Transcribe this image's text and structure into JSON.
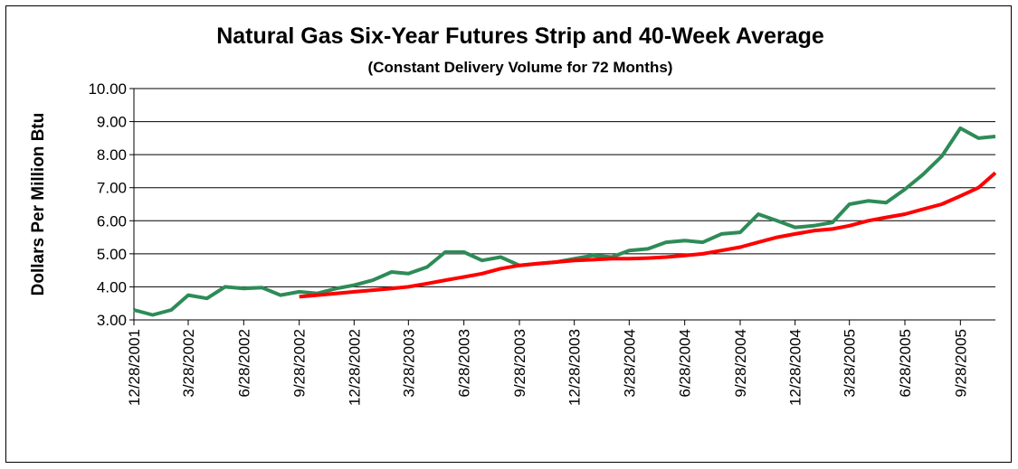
{
  "chart_data": {
    "type": "line",
    "title": "Natural Gas Six-Year Futures Strip and 40-Week Average",
    "subtitle": "(Constant Delivery Volume for 72 Months)",
    "y_label": "Dollars Per Million Btu",
    "x": [
      "12/28/2001",
      "1/28/2002",
      "2/28/2002",
      "3/28/2002",
      "4/28/2002",
      "5/28/2002",
      "6/28/2002",
      "7/28/2002",
      "8/28/2002",
      "9/28/2002",
      "10/28/2002",
      "11/28/2002",
      "12/28/2002",
      "1/28/2003",
      "2/28/2003",
      "3/28/2003",
      "4/28/2003",
      "5/28/2003",
      "6/28/2003",
      "7/28/2003",
      "8/28/2003",
      "9/28/2003",
      "10/28/2003",
      "11/28/2003",
      "12/28/2003",
      "1/28/2004",
      "2/28/2004",
      "3/28/2004",
      "4/28/2004",
      "5/28/2004",
      "6/28/2004",
      "7/28/2004",
      "8/28/2004",
      "9/28/2004",
      "10/28/2004",
      "11/28/2004",
      "12/28/2004",
      "1/28/2005",
      "2/28/2005",
      "3/28/2005",
      "4/28/2005",
      "5/28/2005",
      "6/28/2005",
      "7/28/2005",
      "8/28/2005",
      "9/28/2005",
      "10/28/2005",
      "11/25/2005"
    ],
    "series": [
      {
        "name": "Six-Year Futures Strip",
        "color": "#2e8b57",
        "values": [
          3.3,
          3.15,
          3.3,
          3.75,
          3.65,
          4.0,
          3.95,
          3.98,
          3.75,
          3.85,
          3.8,
          3.95,
          4.05,
          4.2,
          4.45,
          4.4,
          4.6,
          5.05,
          5.05,
          4.8,
          4.9,
          4.65,
          4.7,
          4.75,
          4.85,
          4.95,
          4.9,
          5.1,
          5.15,
          5.35,
          5.4,
          5.35,
          5.6,
          5.65,
          6.2,
          6.0,
          5.8,
          5.85,
          5.95,
          6.5,
          6.6,
          6.55,
          6.95,
          7.4,
          7.95,
          8.8,
          8.5,
          8.55
        ]
      },
      {
        "name": "40-Week Average",
        "color": "#ff0000",
        "values": [
          null,
          null,
          null,
          null,
          null,
          null,
          null,
          null,
          null,
          3.7,
          3.75,
          3.8,
          3.85,
          3.9,
          3.95,
          4.0,
          4.1,
          4.2,
          4.3,
          4.4,
          4.55,
          4.65,
          4.7,
          4.75,
          4.8,
          4.82,
          4.85,
          4.85,
          4.87,
          4.9,
          4.95,
          5.0,
          5.1,
          5.2,
          5.35,
          5.5,
          5.6,
          5.7,
          5.75,
          5.85,
          6.0,
          6.1,
          6.2,
          6.35,
          6.5,
          6.75,
          7.0,
          7.45
        ]
      }
    ],
    "xlim": [
      "12/28/2001",
      "11/25/2005"
    ],
    "xticks": [
      "12/28/2001",
      "3/28/2002",
      "6/28/2002",
      "9/28/2002",
      "12/28/2002",
      "3/28/2003",
      "6/28/2003",
      "9/28/2003",
      "12/28/2003",
      "3/28/2004",
      "6/28/2004",
      "9/28/2004",
      "12/28/2004",
      "3/28/2005",
      "6/28/2005",
      "9/28/2005"
    ],
    "ylim": [
      3,
      10
    ],
    "yticks": [
      {
        "value": 3,
        "label": "3.00"
      },
      {
        "value": 4,
        "label": "4.00"
      },
      {
        "value": 5,
        "label": "5.00"
      },
      {
        "value": 6,
        "label": "6.00"
      },
      {
        "value": 7,
        "label": "7.00"
      },
      {
        "value": 8,
        "label": "8.00"
      },
      {
        "value": 9,
        "label": "9.00"
      },
      {
        "value": 10,
        "label": "10.00"
      }
    ],
    "grid": true
  }
}
